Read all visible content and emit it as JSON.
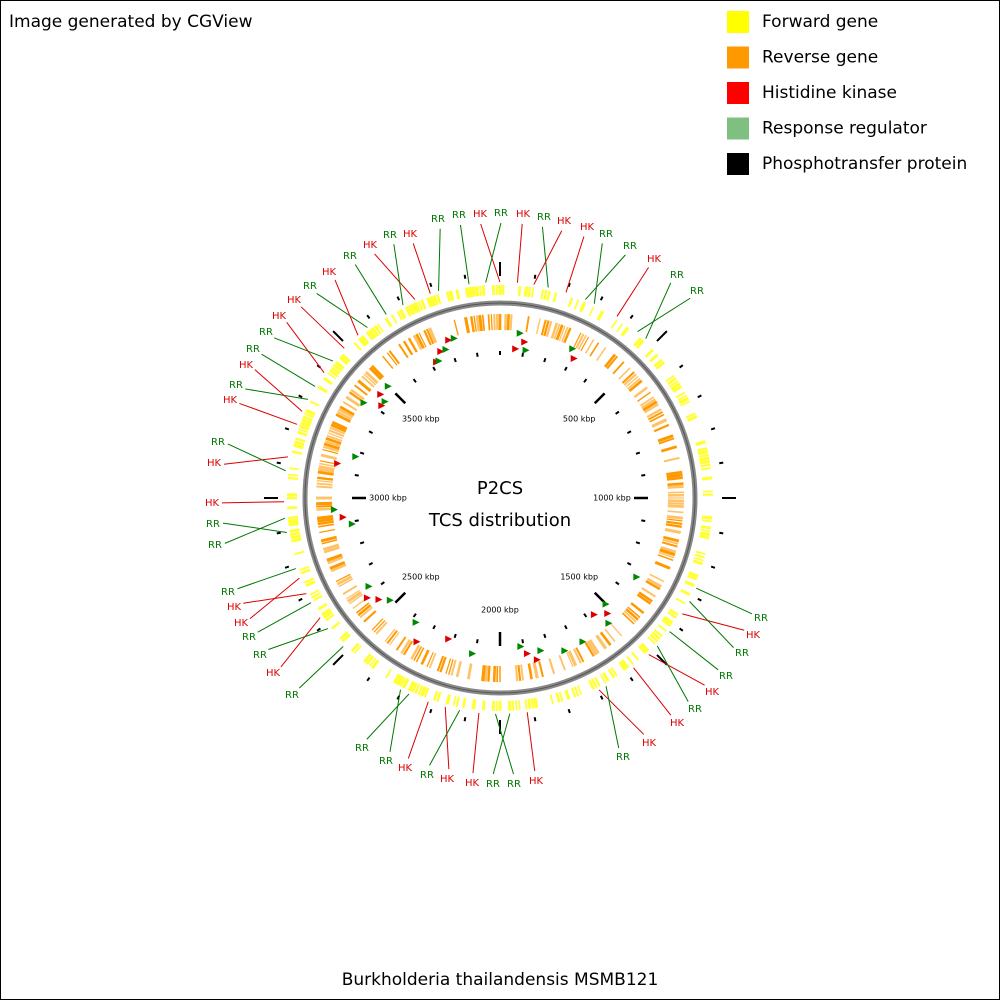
{
  "header": {
    "title": "Image generated by CGView"
  },
  "legend": [
    {
      "name": "Forward gene",
      "color": "#ffff00"
    },
    {
      "name": "Reverse gene",
      "color": "#ff9900"
    },
    {
      "name": "Histidine kinase",
      "color": "#ff0000"
    },
    {
      "name": "Response regulator",
      "color": "#7fbf7f"
    },
    {
      "name": "Phosphotransfer protein",
      "color": "#000000"
    }
  ],
  "map": {
    "title": "P2CS",
    "subtitle": "TCS distribution",
    "ticks": [
      {
        "value": 500,
        "label": "500 kbp"
      },
      {
        "value": 1000,
        "label": "1000 kbp"
      },
      {
        "value": 1500,
        "label": "1500 kbp"
      },
      {
        "value": 2000,
        "label": "2000 kbp"
      },
      {
        "value": 2500,
        "label": "2500 kbp"
      },
      {
        "value": 3000,
        "label": "3000 kbp"
      },
      {
        "value": 3500,
        "label": "3500 kbp"
      }
    ],
    "features": [
      {
        "label": "RR",
        "color": "#007700"
      },
      {
        "label": "RR",
        "color": "#007700"
      },
      {
        "label": "HK",
        "color": "#dd0000"
      },
      {
        "label": "RR",
        "color": "#007700"
      },
      {
        "label": "HK",
        "color": "#dd0000"
      },
      {
        "label": "RR",
        "color": "#007700"
      },
      {
        "label": "HK",
        "color": "#dd0000"
      },
      {
        "label": "HK",
        "color": "#dd0000"
      },
      {
        "label": "RR",
        "color": "#007700"
      },
      {
        "label": "RR",
        "color": "#007700"
      },
      {
        "label": "HK",
        "color": "#dd0000"
      },
      {
        "label": "RR",
        "color": "#007700"
      },
      {
        "label": "RR",
        "color": "#007700"
      },
      {
        "label": "RR",
        "color": "#007700"
      },
      {
        "label": "HK",
        "color": "#dd0000"
      },
      {
        "label": "RR",
        "color": "#007700"
      },
      {
        "label": "RR",
        "color": "#007700"
      },
      {
        "label": "HK",
        "color": "#dd0000"
      },
      {
        "label": "RR",
        "color": "#007700"
      },
      {
        "label": "HK",
        "color": "#dd0000"
      },
      {
        "label": "HK",
        "color": "#dd0000"
      },
      {
        "label": "RR",
        "color": "#007700"
      },
      {
        "label": "HK",
        "color": "#dd0000"
      },
      {
        "label": "RR",
        "color": "#007700"
      },
      {
        "label": "RR",
        "color": "#007700"
      },
      {
        "label": "HK",
        "color": "#dd0000"
      },
      {
        "label": "HK",
        "color": "#dd0000"
      },
      {
        "label": "RR",
        "color": "#007700"
      },
      {
        "label": "HK",
        "color": "#dd0000"
      },
      {
        "label": "RR",
        "color": "#007700"
      },
      {
        "label": "RR",
        "color": "#007700"
      },
      {
        "label": "RR",
        "color": "#007700"
      },
      {
        "label": "HK",
        "color": "#dd0000"
      },
      {
        "label": "RR",
        "color": "#007700"
      },
      {
        "label": "RR",
        "color": "#007700"
      },
      {
        "label": "HK",
        "color": "#dd0000"
      },
      {
        "label": "HK",
        "color": "#dd0000"
      },
      {
        "label": "RR",
        "color": "#007700"
      },
      {
        "label": "RR",
        "color": "#007700"
      },
      {
        "label": "RR",
        "color": "#007700"
      },
      {
        "label": "HK",
        "color": "#dd0000"
      },
      {
        "label": "HK",
        "color": "#dd0000"
      },
      {
        "label": "RR",
        "color": "#007700"
      },
      {
        "label": "HK",
        "color": "#dd0000"
      },
      {
        "label": "RR",
        "color": "#007700"
      },
      {
        "label": "HK",
        "color": "#dd0000"
      },
      {
        "label": "RR",
        "color": "#007700"
      },
      {
        "label": "RR",
        "color": "#007700"
      },
      {
        "label": "HK",
        "color": "#dd0000"
      },
      {
        "label": "HK",
        "color": "#dd0000"
      },
      {
        "label": "RR",
        "color": "#007700"
      },
      {
        "label": "HK",
        "color": "#dd0000"
      },
      {
        "label": "RR",
        "color": "#007700"
      },
      {
        "label": "HK",
        "color": "#dd0000"
      },
      {
        "label": "RR",
        "color": "#007700"
      },
      {
        "label": "HK",
        "color": "#dd0000"
      }
    ]
  },
  "footer": {
    "organism": "Burkholderia thailandensis MSMB121"
  }
}
